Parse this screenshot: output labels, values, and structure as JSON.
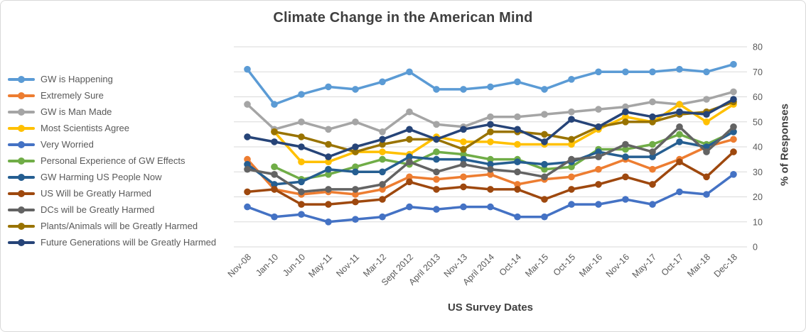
{
  "chart_data": {
    "type": "line",
    "title": "Climate Change in the American Mind",
    "xlabel": "US Survey Dates",
    "ylabel": "% of Responses",
    "ylim": [
      0,
      80
    ],
    "y_ticks": [
      0,
      10,
      20,
      30,
      40,
      50,
      60,
      70,
      80
    ],
    "grid": true,
    "legend_position": "left",
    "categories": [
      "Nov-08",
      "Jan-10",
      "Jun-10",
      "May-11",
      "Nov-11",
      "Mar-12",
      "Sept 2012",
      "April 2013",
      "Nov-13",
      "April 2014",
      "Oct-14",
      "Mar-15",
      "Oct-15",
      "Mar-16",
      "Nov-16",
      "May-17",
      "Oct-17",
      "Mar-18",
      "Dec-18"
    ],
    "series": [
      {
        "name": "GW is Happening",
        "color": "#5B9BD5",
        "values": [
          71,
          57,
          61,
          64,
          63,
          66,
          70,
          63,
          63,
          64,
          66,
          63,
          67,
          70,
          70,
          70,
          71,
          70,
          73
        ]
      },
      {
        "name": "Extremely Sure",
        "color": "#ED7D31",
        "values": [
          35,
          23,
          21,
          22,
          21,
          23,
          28,
          27,
          28,
          29,
          25,
          27,
          28,
          31,
          35,
          31,
          35,
          40,
          43
        ]
      },
      {
        "name": "GW is Man Made",
        "color": "#A5A5A5",
        "values": [
          57,
          47,
          50,
          47,
          50,
          46,
          54,
          49,
          48,
          52,
          52,
          53,
          54,
          55,
          56,
          58,
          57,
          59,
          62
        ]
      },
      {
        "name": "Most Scientists Agree",
        "color": "#FFC000",
        "values": [
          null,
          46,
          34,
          34,
          38,
          38,
          37,
          44,
          42,
          42,
          41,
          41,
          41,
          47,
          52,
          50,
          57,
          50,
          57
        ]
      },
      {
        "name": "Very Worried",
        "color": "#4472C4",
        "values": [
          16,
          12,
          13,
          10,
          11,
          12,
          16,
          15,
          16,
          16,
          12,
          12,
          17,
          17,
          19,
          17,
          22,
          21,
          29
        ]
      },
      {
        "name": "Personal Experience of GW Effects",
        "color": "#70AD47",
        "values": [
          null,
          32,
          27,
          29,
          32,
          35,
          33,
          38,
          37,
          35,
          35,
          31,
          32,
          39,
          39,
          41,
          45,
          41,
          46
        ]
      },
      {
        "name": "GW Harming US People Now",
        "color": "#255E91",
        "values": [
          33,
          25,
          26,
          31,
          30,
          30,
          36,
          35,
          35,
          33,
          34,
          33,
          34,
          38,
          36,
          36,
          42,
          40,
          46
        ]
      },
      {
        "name": "US Will be Greatly Harmed",
        "color": "#9E480E",
        "values": [
          22,
          23,
          17,
          17,
          18,
          19,
          26,
          23,
          24,
          23,
          23,
          19,
          23,
          25,
          28,
          25,
          34,
          28,
          38
        ]
      },
      {
        "name": "DCs will be Greatly Harmed",
        "color": "#636363",
        "values": [
          31,
          29,
          22,
          23,
          23,
          25,
          34,
          30,
          33,
          31,
          30,
          28,
          35,
          36,
          41,
          38,
          48,
          38,
          48
        ]
      },
      {
        "name": "Plants/Animals will be Greatly Harmed",
        "color": "#997300",
        "values": [
          null,
          46,
          44,
          41,
          38,
          41,
          43,
          43,
          39,
          46,
          46,
          45,
          43,
          48,
          50,
          50,
          53,
          54,
          58
        ]
      },
      {
        "name": "Future Generations will be Greatly Harmed",
        "color": "#264478",
        "values": [
          44,
          42,
          40,
          36,
          40,
          43,
          47,
          43,
          47,
          49,
          47,
          42,
          51,
          48,
          54,
          52,
          54,
          53,
          59
        ]
      }
    ]
  },
  "colors": {
    "gridline": "#D9D9D9",
    "tick_text": "#595959",
    "title_text": "#3F3F3F",
    "axis_title_text": "#404040",
    "background": "#FFFFFF",
    "border": "#D9D9D9"
  }
}
